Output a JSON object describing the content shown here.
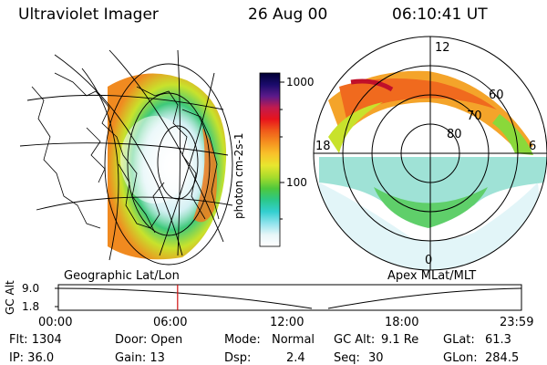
{
  "header": {
    "instrument": "Ultraviolet Imager",
    "date": "26 Aug 00",
    "time": "06:10:41 UT"
  },
  "colorbar": {
    "label": "photon cm-2s-1",
    "ticks": [
      "1000",
      "100"
    ],
    "stops": [
      "#000033",
      "#1a0b6b",
      "#5a1a8a",
      "#c21b4e",
      "#e8141c",
      "#f05a1a",
      "#f5901f",
      "#f8c22a",
      "#e8e62e",
      "#a8dc2c",
      "#4ec83c",
      "#2bc88a",
      "#33cfd0",
      "#8fe3ec",
      "#e8f6f8",
      "#ffffff"
    ]
  },
  "polar_plot": {
    "mlt_labels": [
      "12",
      "18",
      "6",
      "0"
    ],
    "mlat_labels": [
      "60",
      "70",
      "80"
    ]
  },
  "left_caption": "Geographic Lat/Lon",
  "right_caption": "Apex MLat/MLT",
  "timeline": {
    "ylabel": "GC Alt",
    "yticks": [
      "9.0",
      "1.8"
    ],
    "xticks": [
      "00:00",
      "06:00",
      "12:00",
      "18:00",
      "23:59"
    ],
    "marker_hour": 6.18
  },
  "info": {
    "flt": "Flt: 1304",
    "ip": "IP: 36.0",
    "door": "Door: Open",
    "gain": "Gain: 13",
    "mode_label": "Mode:",
    "mode_value": "Normal",
    "dsp_label": "Dsp:",
    "dsp_value": "2.4",
    "gcalt_label": "GC Alt:",
    "gcalt_value": "9.1 Re",
    "seq_label": "Seq:",
    "seq_value": "30",
    "glat_label": "GLat:",
    "glat_value": "61.3",
    "glon_label": "GLon:",
    "glon_value": "284.5"
  }
}
